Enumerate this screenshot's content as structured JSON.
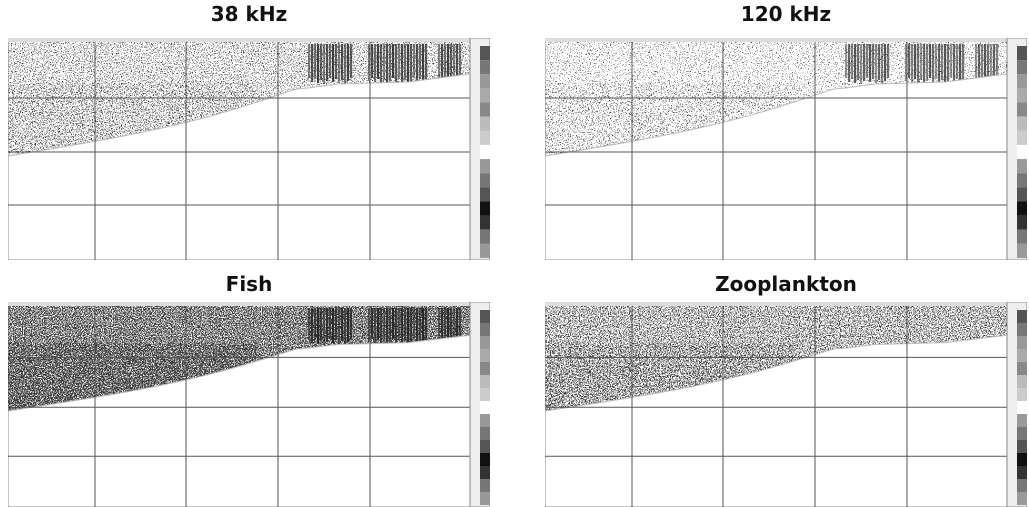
{
  "panels": [
    {
      "title": "38 kHz"
    },
    {
      "title": "120 kHz"
    },
    {
      "title": "Fish"
    },
    {
      "title": "Zooplankton"
    }
  ]
}
